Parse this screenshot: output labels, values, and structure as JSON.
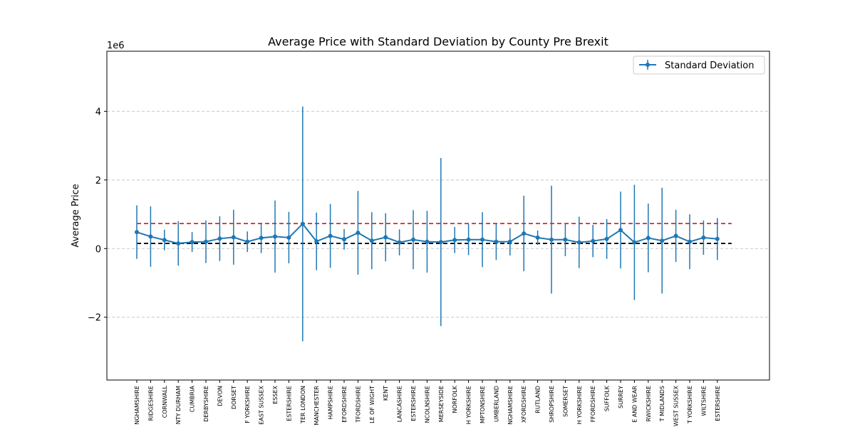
{
  "chart_data": {
    "type": "line",
    "title": "Average Price with Standard Deviation by County Pre Brexit",
    "ylabel": "Average Price",
    "xlabel": "",
    "y_offset_label": "1e6",
    "y_scale_factor": 1000000,
    "ylim": [
      -3.83,
      5.75
    ],
    "yticks": [
      -2,
      0,
      2,
      4
    ],
    "ytick_labels": [
      "−2",
      "0",
      "2",
      "4"
    ],
    "grid": {
      "y": true,
      "style": "dashed"
    },
    "legend": {
      "placement": "top-right",
      "entries": [
        "Standard Deviation"
      ]
    },
    "colors": {
      "series": "#1f77b4",
      "upper_line": "#d62728",
      "lower_line": "#000000",
      "grid": "#c8c8c8"
    },
    "reference_lines": [
      {
        "value": 0.73,
        "color": "#d62728",
        "style": "dashed"
      },
      {
        "value": 0.15,
        "color": "#000000",
        "style": "dashed"
      }
    ],
    "categories": [
      "NGHAMSHIRE",
      "RIDGESHIRE",
      "CORNWALL",
      "NTY DURHAM",
      "CUMBRIA",
      "DERBYSHIRE",
      "DEVON",
      "DORSET",
      "F YORKSHIRE",
      "EAST SUSSEX",
      "ESSEX",
      "ESTERSHIRE",
      "TER LONDON",
      "MANCHESTER",
      "HAMPSHIRE",
      "EFORDSHIRE",
      "TFORDSHIRE",
      "LE OF WIGHT",
      "KENT",
      "LANCASHIRE",
      "ESTERSHIRE",
      "NCOLNSHIRE",
      "MERSEYSIDE",
      "NORFOLK",
      "H YORKSHIRE",
      "MPTONSHIRE",
      "UMBERLAND",
      "NGHAMSHIRE",
      "XFORDSHIRE",
      "RUTLAND",
      "SHROPSHIRE",
      "SOMERSET",
      "H YORKSHIRE",
      "FFORDSHIRE",
      "SUFFOLK",
      "SURREY",
      "E AND WEAR",
      "RWICKSHIRE",
      "T MIDLANDS",
      "WEST SUSSEX",
      "T YORKSHIRE",
      "WILTSHIRE",
      "ESTERSHIRE"
    ],
    "series": [
      {
        "name": "Standard Deviation",
        "values": [
          0.48,
          0.35,
          0.25,
          0.15,
          0.19,
          0.2,
          0.29,
          0.33,
          0.2,
          0.31,
          0.35,
          0.32,
          0.72,
          0.21,
          0.37,
          0.27,
          0.46,
          0.23,
          0.33,
          0.18,
          0.26,
          0.2,
          0.19,
          0.25,
          0.26,
          0.26,
          0.2,
          0.2,
          0.44,
          0.32,
          0.26,
          0.26,
          0.18,
          0.22,
          0.28,
          0.54,
          0.18,
          0.31,
          0.23,
          0.37,
          0.2,
          0.32,
          0.28
        ],
        "errors": [
          0.78,
          0.88,
          0.3,
          0.65,
          0.29,
          0.62,
          0.65,
          0.8,
          0.3,
          0.44,
          1.05,
          0.75,
          3.42,
          0.84,
          0.93,
          0.3,
          1.22,
          0.83,
          0.7,
          0.38,
          0.86,
          0.9,
          2.45,
          0.38,
          0.45,
          0.8,
          0.53,
          0.4,
          1.1,
          0.21,
          1.57,
          0.48,
          0.75,
          0.47,
          0.58,
          1.12,
          1.68,
          1.0,
          1.54,
          0.76,
          0.8,
          0.5,
          0.61
        ]
      }
    ]
  }
}
